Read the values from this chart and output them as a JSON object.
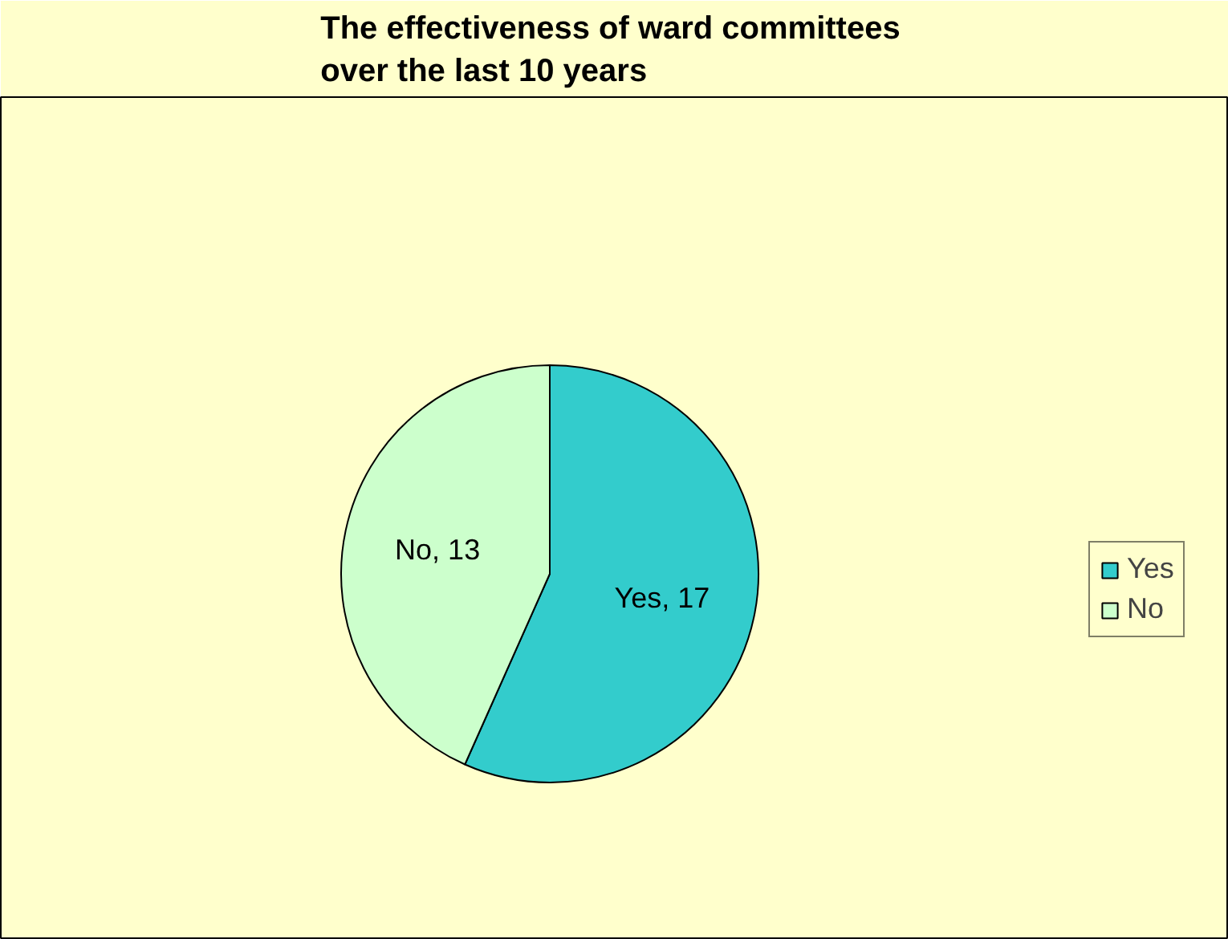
{
  "chart_data": {
    "type": "pie",
    "title": "The effectiveness  of ward committees\nover the last 10 years",
    "categories": [
      "Yes",
      "No"
    ],
    "values": [
      17,
      13
    ],
    "colors": [
      "#33cccc",
      "#ccffcc"
    ],
    "value_labels": [
      "Yes, 17",
      "No, 13"
    ],
    "legend": "right"
  }
}
